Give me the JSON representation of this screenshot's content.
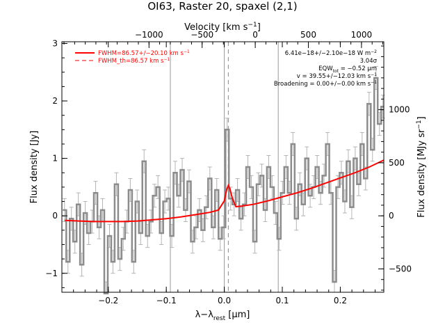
{
  "chart_data": {
    "type": "line",
    "title": "OI63, Raster 20, spaxel (2,1)",
    "xlabel": "λ−λ",
    "xlabel_sub": "rest",
    "xlabel_unit": "[μm]",
    "ylabel": "Flux density [Jy]",
    "top_xlabel": "Velocity [km s",
    "top_xlabel_sup": "−1",
    "top_xlabel_end": "]",
    "right_ylabel": "Flux density [MJy sr",
    "right_ylabel_sup": "−1",
    "right_ylabel_end": "]",
    "xlim": [
      -0.28,
      0.275
    ],
    "ylim": [
      -1.33,
      3.03
    ],
    "right_ylim": [
      -720,
      1640
    ],
    "top_xlim": [
      -1820,
      1210
    ],
    "x_ticks": [
      -0.2,
      -0.1,
      0.0,
      0.1,
      0.2
    ],
    "x_tick_labels": [
      "−0.2",
      "−0.1",
      "0.0",
      "0.1",
      "0.2"
    ],
    "y_ticks": [
      -1,
      0,
      1,
      2,
      3
    ],
    "y_tick_labels": [
      "−1",
      "0",
      "1",
      "2",
      "3"
    ],
    "top_ticks": [
      -1000,
      -500,
      0,
      500,
      1000
    ],
    "top_tick_labels": [
      "−1000",
      "−500",
      "0",
      "500",
      "1000"
    ],
    "right_ticks": [
      -500,
      0,
      500,
      1000
    ],
    "right_tick_labels": [
      "−500",
      "0",
      "500",
      "1000"
    ],
    "vlines_solid": [
      -0.093,
      0.0,
      0.093
    ],
    "vline_dashed": 0.007,
    "legend": {
      "position": "top-left",
      "entries": [
        {
          "label": "FWHM=86.57+/−20.10 km s",
          "sup": "−1",
          "style": "solid"
        },
        {
          "label": "FWHM_th=86.57 km s",
          "sup": "−1",
          "style": "dashed"
        }
      ]
    },
    "annotations": {
      "line1": "6.41e−18+/−2.10e−18 W m",
      "line1_sup": "−2",
      "line2": "3.04σ",
      "line3": "EQW",
      "line3_sub": "tot",
      "line3_rest": " = −0.52 μm",
      "line4": "v = 39.55+/−12.03 km s",
      "line4_sup": "−1",
      "line5": "Broadening = 0.00+/−0.00 km s",
      "line5_sup": "−1"
    },
    "colors": {
      "data": "#8c8c8c",
      "error": "#b4b4b4",
      "fit": "#ff0000",
      "vline": "#999999"
    },
    "series": [
      {
        "name": "data",
        "x": [
          -0.2755,
          -0.2695,
          -0.2636,
          -0.2576,
          -0.2516,
          -0.2457,
          -0.2397,
          -0.2337,
          -0.2278,
          -0.2218,
          -0.2158,
          -0.2099,
          -0.2039,
          -0.1979,
          -0.192,
          -0.186,
          -0.18,
          -0.1741,
          -0.1681,
          -0.1621,
          -0.1562,
          -0.1502,
          -0.1442,
          -0.1383,
          -0.1323,
          -0.1263,
          -0.1204,
          -0.1144,
          -0.1084,
          -0.1025,
          -0.0965,
          -0.0905,
          -0.0846,
          -0.0786,
          -0.0726,
          -0.0667,
          -0.0607,
          -0.0547,
          -0.0488,
          -0.0428,
          -0.0368,
          -0.0309,
          -0.0249,
          -0.0189,
          -0.013,
          -0.007,
          -0.001,
          0.0049,
          0.0109,
          0.0169,
          0.0228,
          0.0288,
          0.0348,
          0.0407,
          0.0467,
          0.0527,
          0.0586,
          0.0646,
          0.0706,
          0.0765,
          0.0825,
          0.0885,
          0.0944,
          0.1004,
          0.1064,
          0.1123,
          0.1183,
          0.1243,
          0.1302,
          0.1362,
          0.1422,
          0.1481,
          0.1541,
          0.1601,
          0.166,
          0.172,
          0.178,
          0.1839,
          0.1899,
          0.1959,
          0.2018,
          0.2078,
          0.2138,
          0.2197,
          0.2257,
          0.2317,
          0.2376,
          0.2436,
          0.2496,
          0.2555,
          0.2615,
          0.2675,
          0.2734
        ],
        "values": [
          0.1,
          -0.8,
          -0.05,
          -0.45,
          0.2,
          -0.85,
          0.05,
          -0.3,
          -0.1,
          0.4,
          -0.2,
          0.1,
          -1.35,
          -0.35,
          -0.8,
          0.55,
          -0.75,
          -0.4,
          -0.1,
          0.45,
          -0.8,
          0.25,
          -0.3,
          0.95,
          -0.35,
          -0.1,
          0.35,
          0.5,
          -0.3,
          0.25,
          0.3,
          -0.35,
          0.75,
          0.35,
          0.8,
          0.1,
          0.6,
          -0.45,
          -0.2,
          0.1,
          -0.25,
          0.15,
          0.65,
          -0.2,
          0.45,
          -0.4,
          -0.2,
          1.5,
          0.3,
          0.2,
          0.45,
          -0.05,
          0.2,
          0.85,
          0.5,
          -0.45,
          0.55,
          0.7,
          0.1,
          0.85,
          0.5,
          0.05,
          -0.4,
          0.4,
          0.85,
          0.4,
          1.25,
          -0.05,
          0.55,
          0.2,
          1.0,
          0.35,
          0.5,
          0.85,
          0.4,
          0.7,
          1.25,
          0.4,
          -1.15,
          0.5,
          0.75,
          0.25,
          0.95,
          0.15,
          1.0,
          0.55,
          1.25,
          0.65,
          1.95,
          1.15,
          2.4,
          1.6,
          1.9
        ]
      },
      {
        "name": "fit",
        "x": [
          -0.275,
          -0.25,
          -0.225,
          -0.2,
          -0.175,
          -0.15,
          -0.125,
          -0.1,
          -0.075,
          -0.05,
          -0.025,
          -0.01,
          0.0,
          0.004,
          0.007,
          0.01,
          0.014,
          0.02,
          0.03,
          0.05,
          0.075,
          0.1,
          0.125,
          0.15,
          0.175,
          0.2,
          0.225,
          0.25,
          0.275
        ],
        "values": [
          -0.08,
          -0.09,
          -0.1,
          -0.1,
          -0.1,
          -0.09,
          -0.07,
          -0.05,
          -0.02,
          0.02,
          0.06,
          0.1,
          0.26,
          0.45,
          0.53,
          0.46,
          0.3,
          0.16,
          0.17,
          0.2,
          0.26,
          0.33,
          0.4,
          0.48,
          0.57,
          0.66,
          0.75,
          0.85,
          0.97
        ]
      }
    ]
  }
}
